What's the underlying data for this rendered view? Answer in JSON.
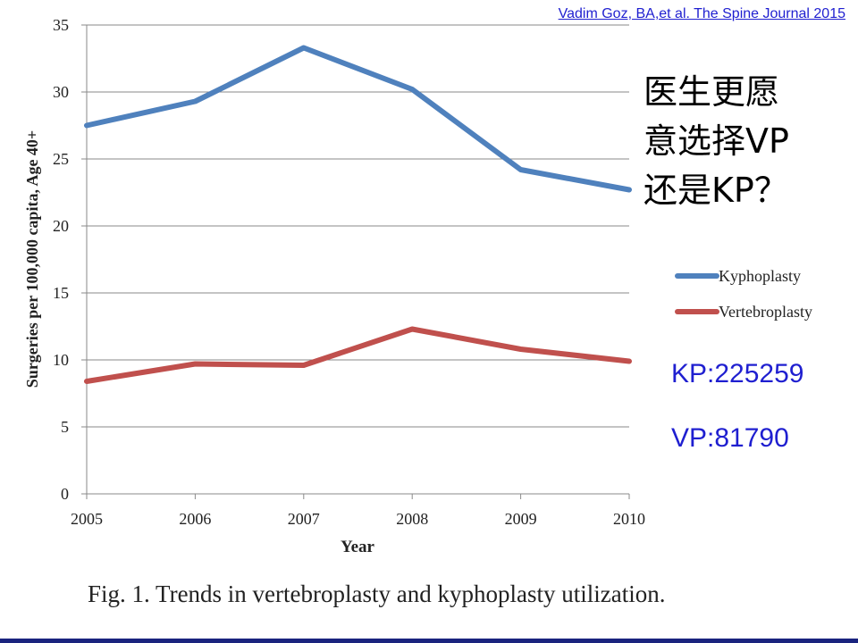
{
  "slide": {
    "citation": "Vadim  Goz, BA,et al. The Spine Journal 2015",
    "question_lines": [
      "医生更愿",
      "意选择VP",
      "还是KP？"
    ],
    "stats": {
      "kp": "KP:225259",
      "vp": "VP:81790"
    },
    "caption": "Fig. 1.  Trends  in vertebroplasty and kyphoplasty utilization."
  },
  "colors": {
    "kyphoplasty": "#4f81bd",
    "vertebroplasty": "#c0504d",
    "stat_text": "#1f1fd0",
    "bottom_bar": "#1a237e"
  },
  "chart_data": {
    "type": "line",
    "title": "",
    "xlabel": "Year",
    "ylabel": "Surgeries per 100,000 capita, Age 40+",
    "x": [
      2005,
      2006,
      2007,
      2008,
      2009,
      2010
    ],
    "ylim": [
      0,
      35
    ],
    "yticks": [
      0,
      5,
      10,
      15,
      20,
      25,
      30,
      35
    ],
    "grid": true,
    "legend": "right",
    "series": [
      {
        "name": "Kyphoplasty",
        "color": "#4f81bd",
        "values": [
          27.5,
          29.3,
          33.3,
          30.2,
          24.2,
          22.7
        ]
      },
      {
        "name": "Vertebroplasty",
        "color": "#c0504d",
        "values": [
          8.4,
          9.7,
          9.6,
          12.3,
          10.8,
          9.9
        ]
      }
    ]
  }
}
